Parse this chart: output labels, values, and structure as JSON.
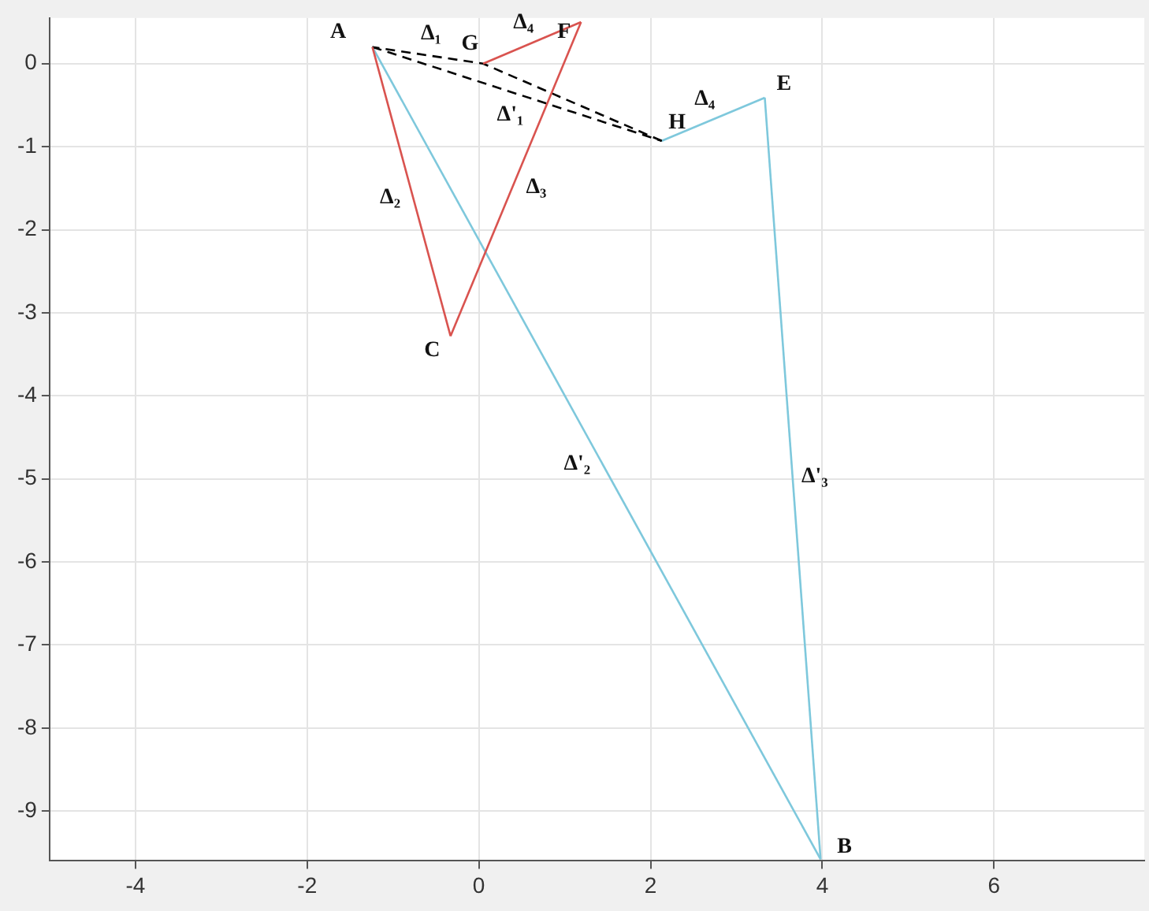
{
  "chart_data": {
    "type": "line",
    "xlim": [
      -5,
      7.75
    ],
    "ylim": [
      -9.6,
      0.55
    ],
    "xticks": [
      -4,
      -2,
      0,
      2,
      4,
      6
    ],
    "yticks": [
      -9,
      -8,
      -7,
      -6,
      -5,
      -4,
      -3,
      -2,
      -1,
      0
    ],
    "grid": true,
    "marker": "none",
    "series": [
      {
        "name": "Δ₂",
        "color": "#d9534f",
        "x": [
          -1.24,
          -0.33
        ],
        "values": [
          0.2,
          -3.28
        ]
      },
      {
        "name": "Δ₃",
        "color": "#d9534f",
        "x": [
          -0.33,
          1.19
        ],
        "values": [
          -3.28,
          0.5
        ]
      },
      {
        "name": "Δ₄",
        "color": "#d9534f",
        "x": [
          1.19,
          0.05
        ],
        "values": [
          0.5,
          0
        ]
      },
      {
        "name": "Δ₁",
        "color": "#000000",
        "line_style": "dashed",
        "x": [
          2.13,
          0.05,
          -1.24
        ],
        "values": [
          -0.93,
          0,
          0.2
        ]
      },
      {
        "name": "Δ'₁",
        "color": "#000000",
        "line_style": "dashed",
        "x": [
          -1.24,
          2.13
        ],
        "values": [
          0.2,
          -0.93
        ]
      },
      {
        "name": "Δ'₂",
        "color": "#7ec8dc",
        "x": [
          -1.24,
          3.98
        ],
        "values": [
          0.2,
          -9.58
        ]
      },
      {
        "name": "Δ'₃",
        "color": "#7ec8dc",
        "x": [
          3.98,
          3.33
        ],
        "values": [
          -9.58,
          -0.41
        ]
      },
      {
        "name": "Δ₄",
        "color": "#7ec8dc",
        "x": [
          3.33,
          2.13
        ],
        "values": [
          -0.41,
          -0.93
        ]
      }
    ],
    "annotations": [
      {
        "text": "A",
        "x": -1.24,
        "y": 0.2
      },
      {
        "text": "G",
        "x": 0.05,
        "y": 0
      },
      {
        "text": "F",
        "x": 1.19,
        "y": 0.5
      },
      {
        "text": "E",
        "x": 3.33,
        "y": -0.41
      },
      {
        "text": "H",
        "x": 2.13,
        "y": -0.93
      },
      {
        "text": "C",
        "x": -0.33,
        "y": -3.28
      },
      {
        "text": "B",
        "x": 3.98,
        "y": -9.58
      }
    ]
  }
}
